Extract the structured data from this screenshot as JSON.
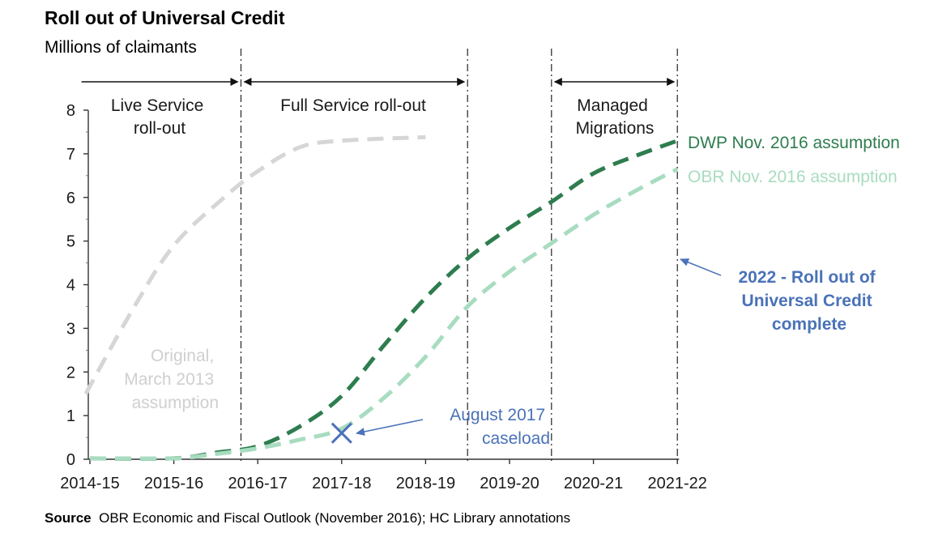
{
  "chart_data": {
    "type": "line",
    "title": "Roll out of Universal Credit",
    "ylabel": "Millions of claimants",
    "xlabel": "",
    "categories": [
      "2014-15",
      "2015-16",
      "2016-17",
      "2017-18",
      "2018-19",
      "2019-20",
      "2020-21",
      "2021-22"
    ],
    "ylim": [
      0,
      8
    ],
    "yticks": [
      "0",
      "1",
      "2",
      "3",
      "4",
      "5",
      "6",
      "7",
      "8"
    ],
    "series": [
      {
        "name": "Original, March 2013 assumption",
        "label_lines": [
          "Original,",
          "March 2013",
          "assumption"
        ],
        "color": "#d6d6d6",
        "points": [
          [
            -0.05,
            1.5
          ],
          [
            0.5,
            3.4
          ],
          [
            1,
            4.9
          ],
          [
            1.6,
            6.0
          ],
          [
            2,
            6.6
          ],
          [
            2.5,
            7.15
          ],
          [
            3,
            7.3
          ],
          [
            4,
            7.38
          ]
        ]
      },
      {
        "name": "DWP Nov. 2016 assumption",
        "label_lines": [
          "DWP Nov. 2016 assumption"
        ],
        "color": "#2e7d4f",
        "points": [
          [
            0,
            0.02
          ],
          [
            1,
            0.02
          ],
          [
            1.5,
            0.15
          ],
          [
            2,
            0.3
          ],
          [
            2.5,
            0.75
          ],
          [
            3,
            1.45
          ],
          [
            3.5,
            2.6
          ],
          [
            4,
            3.7
          ],
          [
            4.5,
            4.6
          ],
          [
            5,
            5.3
          ],
          [
            5.5,
            5.9
          ],
          [
            6,
            6.55
          ],
          [
            6.5,
            6.95
          ],
          [
            7,
            7.3
          ]
        ]
      },
      {
        "name": "OBR Nov. 2016 assumption",
        "label_lines": [
          "OBR Nov. 2016 assumption"
        ],
        "color": "#a8dcc0",
        "points": [
          [
            0,
            0.02
          ],
          [
            1,
            0.02
          ],
          [
            1.5,
            0.12
          ],
          [
            2,
            0.25
          ],
          [
            2.5,
            0.45
          ],
          [
            3,
            0.7
          ],
          [
            3.5,
            1.4
          ],
          [
            4,
            2.35
          ],
          [
            4.5,
            3.5
          ],
          [
            5,
            4.3
          ],
          [
            5.5,
            4.95
          ],
          [
            6,
            5.6
          ],
          [
            6.5,
            6.15
          ],
          [
            7,
            6.65
          ]
        ]
      }
    ],
    "phase_dividers": [
      1.8,
      4.5,
      5.5,
      7.0
    ],
    "phases": [
      {
        "lines": [
          "Live Service",
          "roll-out"
        ],
        "arrow": "end",
        "x_from": -0.1,
        "x_to": 1.8
      },
      {
        "lines": [
          "Full Service roll-out"
        ],
        "arrow": "both",
        "x_from": 1.8,
        "x_to": 4.5
      },
      {
        "lines": [
          "Managed",
          "Migrations"
        ],
        "arrow": "both",
        "x_from": 5.5,
        "x_to": 7.0
      }
    ],
    "annotations": [
      {
        "name": "august-2017-caseload",
        "lines": [
          "August 2017",
          "caseload"
        ],
        "color": "#4a72b8",
        "marker": "x",
        "x": 3,
        "y": 0.6
      },
      {
        "name": "rollout-complete",
        "lines": [
          "2022 - Roll out of",
          "Universal Credit",
          "complete"
        ],
        "color": "#4a72b8",
        "bold": true
      }
    ]
  },
  "source": {
    "label": "Source",
    "text": "OBR Economic and Fiscal Outlook (November 2016); HC Library annotations"
  }
}
